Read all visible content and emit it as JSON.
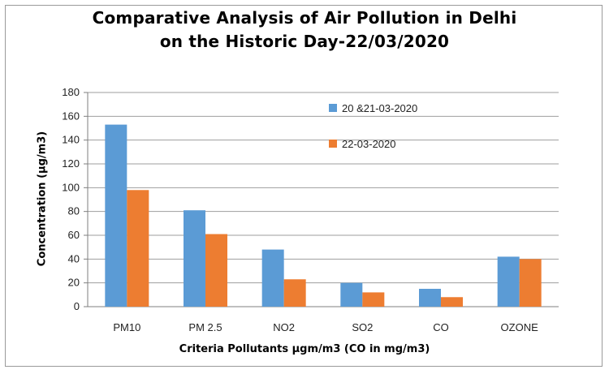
{
  "chart_data": {
    "type": "bar",
    "title_line1": "Comparative Analysis of Air Pollution in Delhi",
    "title_line2": "on the Historic Day-22/03/2020",
    "xlabel": "Criteria Pollutants μgm/m3 (CO in mg/m3)",
    "ylabel": "Concentration (μg/m3)",
    "categories": [
      "PM10",
      "PM 2.5",
      "NO2",
      "SO2",
      "CO",
      "OZONE"
    ],
    "series": [
      {
        "name": "20 &21-03-2020",
        "color": "#5b9bd5",
        "values": [
          153,
          81,
          48,
          20,
          15,
          42
        ]
      },
      {
        "name": "22-03-2020",
        "color": "#ed7d31",
        "values": [
          98,
          61,
          23,
          12,
          8,
          40
        ]
      }
    ],
    "ylim": [
      0,
      180
    ],
    "yticks": [
      0,
      20,
      40,
      60,
      80,
      100,
      120,
      140,
      160,
      180
    ],
    "grid": true,
    "legend_position": "top-right"
  }
}
